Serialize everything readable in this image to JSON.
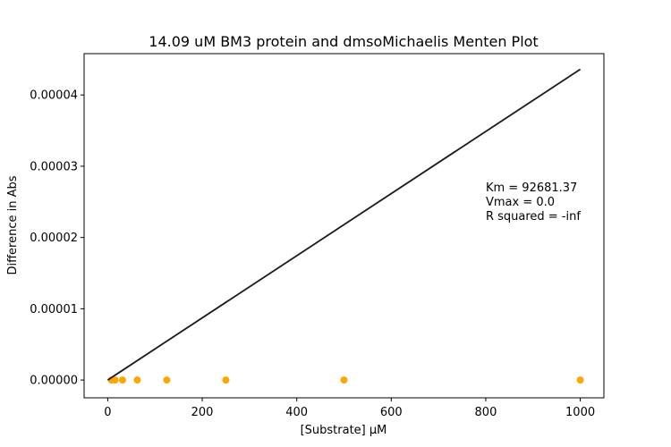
{
  "chart_data": {
    "type": "scatter",
    "title": "14.09 uM BM3 protein and dmsoMichaelis Menten Plot",
    "xlabel": "[Substrate] μM",
    "ylabel": "Difference in Abs",
    "xlim": [
      -50,
      1050
    ],
    "ylim": [
      -2.5e-06,
      4.58e-05
    ],
    "x_ticks": [
      0,
      200,
      400,
      600,
      800,
      1000
    ],
    "x_tick_labels": [
      "0",
      "200",
      "400",
      "600",
      "800",
      "1000"
    ],
    "y_ticks": [
      0,
      1e-05,
      2e-05,
      3e-05,
      4e-05
    ],
    "y_tick_labels": [
      "0.00000",
      "0.00001",
      "0.00002",
      "0.00003",
      "0.00004"
    ],
    "grid": false,
    "series": [
      {
        "kind": "scatter",
        "color": "#ffa500",
        "x": [
          7.8,
          15.6,
          31.25,
          62.5,
          125,
          250,
          500,
          1000
        ],
        "y": [
          0,
          0,
          0,
          0,
          0,
          0,
          0,
          0
        ]
      },
      {
        "kind": "line",
        "color": "#1a1a1a",
        "x": [
          0,
          1000
        ],
        "y": [
          0,
          4.36e-05
        ]
      }
    ],
    "annotation": {
      "lines": [
        "Km = 92681.37",
        "Vmax = 0.0",
        "R squared = -inf"
      ],
      "x": 800,
      "y": 2.65e-05
    }
  }
}
